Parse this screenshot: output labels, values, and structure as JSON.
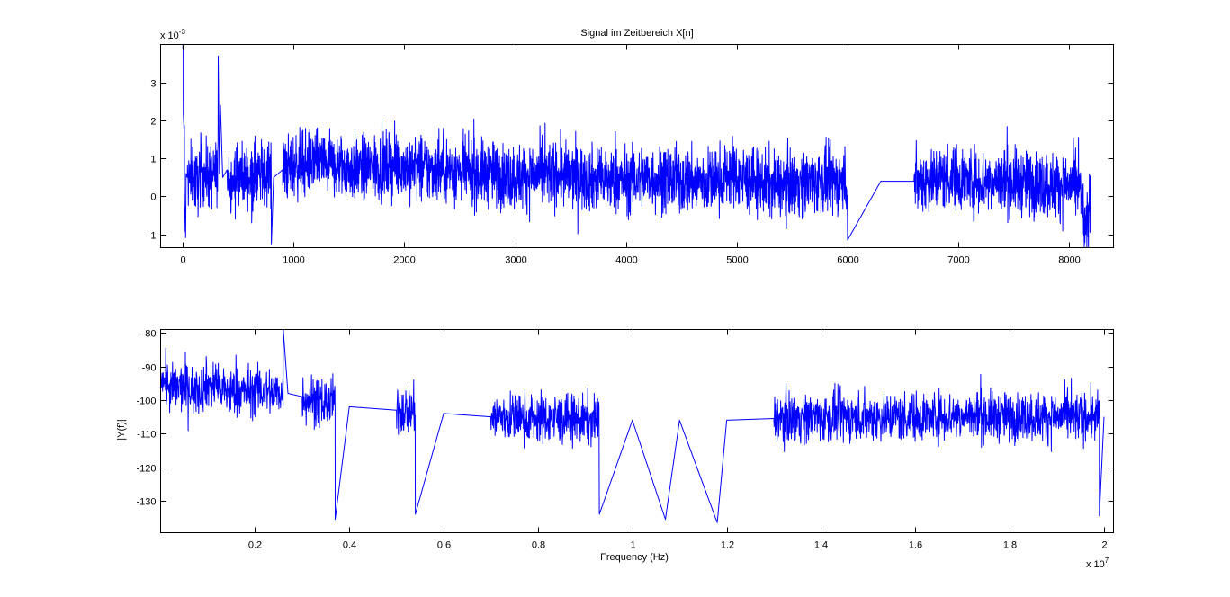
{
  "chart_data": [
    {
      "type": "line",
      "title": "Signal im Zeitbereich X[n]",
      "xlabel": "",
      "ylabel": "",
      "xlim": [
        -200,
        8400
      ],
      "ylim": [
        -1.35,
        4.0
      ],
      "x_ticks": [
        0,
        1000,
        2000,
        3000,
        4000,
        5000,
        6000,
        7000,
        8000
      ],
      "x_tick_labels": [
        "0",
        "1000",
        "2000",
        "3000",
        "4000",
        "5000",
        "6000",
        "7000",
        "8000"
      ],
      "y_ticks": [
        -1,
        0,
        1,
        2,
        3
      ],
      "y_tick_labels": [
        "-1",
        "0",
        "1",
        "2",
        "3"
      ],
      "y_exponent_label": "x 10",
      "y_exponent_power": "-3",
      "grid": false,
      "line_color": "#0000ff",
      "series": [
        {
          "x": [
            0,
            5,
            10,
            15,
            20,
            30,
            40,
            60,
            80,
            100,
            130,
            160,
            200,
            250,
            300,
            320,
            330,
            340,
            360,
            400,
            450,
            500,
            600,
            700,
            780,
            800,
            820,
            900,
            1000,
            1200,
            1400,
            1600,
            1800,
            2000,
            2200,
            2400,
            2600,
            2800,
            3000,
            3300,
            3600,
            3900,
            4200,
            4500,
            4800,
            4950,
            5100,
            5400,
            5700,
            5950,
            6000,
            6300,
            6600,
            6900,
            7200,
            7500,
            7800,
            8000,
            8100,
            8150,
            8192
          ],
          "values": [
            3.9,
            2.2,
            1.8,
            0.3,
            -0.7,
            0.6,
            0.5,
            0.4,
            0.6,
            0.5,
            0.3,
            0.7,
            0.6,
            0.5,
            0.6,
            3.7,
            0.6,
            2.4,
            0.5,
            0.7,
            0.4,
            0.6,
            0.5,
            0.6,
            0.7,
            -1.25,
            0.5,
            0.7,
            0.8,
            0.9,
            0.8,
            0.7,
            0.8,
            0.8,
            0.7,
            0.7,
            0.6,
            0.6,
            0.5,
            0.6,
            0.5,
            0.4,
            0.5,
            0.4,
            0.4,
            0.6,
            0.4,
            0.3,
            0.4,
            0.4,
            -1.15,
            0.4,
            0.4,
            0.5,
            0.4,
            0.4,
            0.3,
            0.3,
            0.2,
            -1.0,
            0.0
          ]
        }
      ]
    },
    {
      "type": "line",
      "title": "",
      "xlabel": "Frequency (Hz)",
      "ylabel": "|Y(f)|",
      "xlim": [
        0,
        2.02
      ],
      "ylim": [
        -139.5,
        -79
      ],
      "x_ticks": [
        0.2,
        0.4,
        0.6,
        0.8,
        1.0,
        1.2,
        1.4,
        1.6,
        1.8,
        2.0
      ],
      "x_tick_labels": [
        "0.2",
        "0.4",
        "0.6",
        "0.8",
        "1",
        "1.2",
        "1.4",
        "1.6",
        "1.8",
        "2"
      ],
      "x_exponent_label": "x 10",
      "x_exponent_power": "7",
      "y_ticks": [
        -130,
        -120,
        -110,
        -100,
        -90,
        -80
      ],
      "y_tick_labels": [
        "-130",
        "-120",
        "-110",
        "-100",
        "-90",
        "-80"
      ],
      "grid": false,
      "line_color": "#0000ff",
      "series": [
        {
          "x": [
            0.0,
            0.02,
            0.05,
            0.08,
            0.1,
            0.15,
            0.2,
            0.25,
            0.26,
            0.27,
            0.3,
            0.35,
            0.37,
            0.4,
            0.5,
            0.54,
            0.6,
            0.7,
            0.8,
            0.9,
            0.93,
            1.0,
            1.07,
            1.1,
            1.18,
            1.2,
            1.3,
            1.4,
            1.5,
            1.6,
            1.7,
            1.8,
            1.9,
            1.99,
            2.0
          ],
          "values": [
            -92,
            -97,
            -96,
            -97,
            -95,
            -98,
            -97,
            -98,
            -79,
            -98,
            -99,
            -101,
            -135.5,
            -102,
            -103,
            -134,
            -104,
            -105,
            -105.5,
            -106,
            -134,
            -106,
            -135.5,
            -106,
            -136.5,
            -106,
            -105.5,
            -105,
            -105,
            -105,
            -104.5,
            -105,
            -105,
            -134.5,
            -105
          ]
        }
      ]
    }
  ]
}
